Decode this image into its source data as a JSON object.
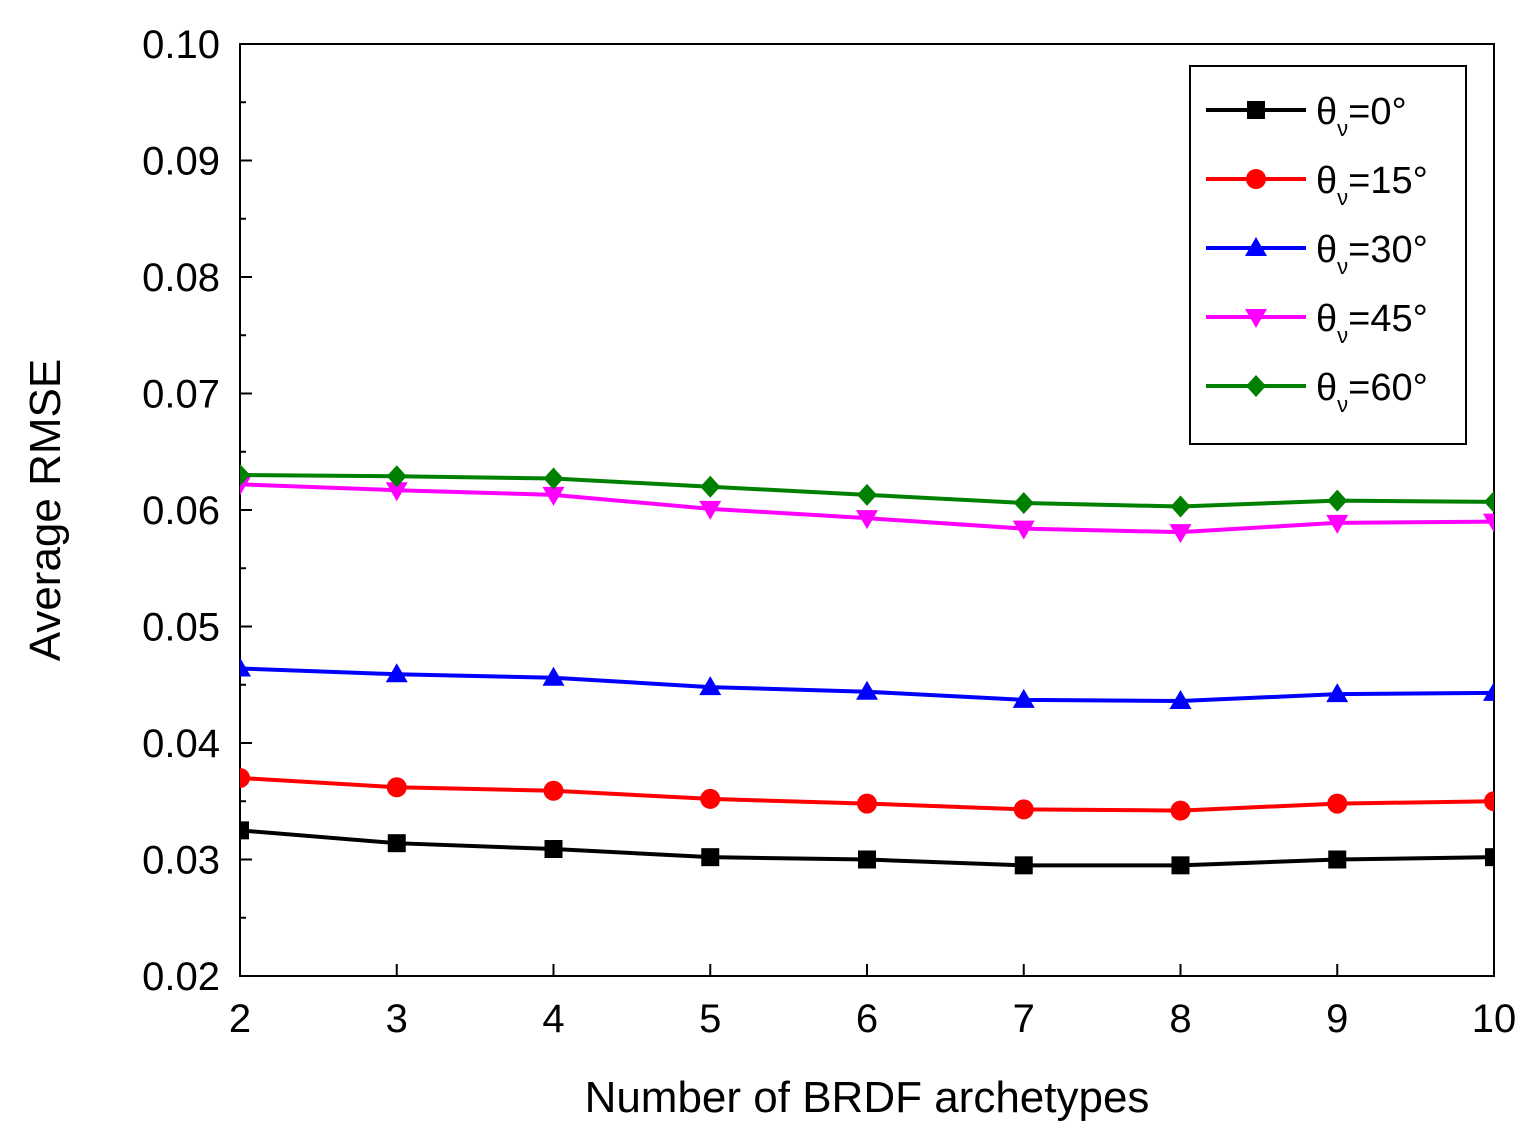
{
  "chart_data": {
    "type": "line",
    "title": "",
    "xlabel": "Number of BRDF archetypes",
    "ylabel": "Average RMSE",
    "xlim": [
      2,
      10
    ],
    "ylim": [
      0.02,
      0.1
    ],
    "xticks": [
      "2",
      "3",
      "4",
      "5",
      "6",
      "7",
      "8",
      "9",
      "10"
    ],
    "yticks": [
      "0.02",
      "0.03",
      "0.04",
      "0.05",
      "0.06",
      "0.07",
      "0.08",
      "0.09",
      "0.10"
    ],
    "x": [
      2,
      3,
      4,
      5,
      6,
      7,
      8,
      9,
      10
    ],
    "legend_position": "top-right",
    "grid": false,
    "series": [
      {
        "name": "θν=0°",
        "symbol": "θ",
        "sub": "ν",
        "suffix": "=0°",
        "color": "#000000",
        "marker": "square",
        "values": [
          0.0325,
          0.0314,
          0.0309,
          0.0302,
          0.03,
          0.0295,
          0.0295,
          0.03,
          0.0302
        ]
      },
      {
        "name": "θν=15°",
        "symbol": "θ",
        "sub": "ν",
        "suffix": "=15°",
        "color": "#ff0000",
        "marker": "circle",
        "values": [
          0.037,
          0.0362,
          0.0359,
          0.0352,
          0.0348,
          0.0343,
          0.0342,
          0.0348,
          0.035
        ]
      },
      {
        "name": "θν=30°",
        "symbol": "θ",
        "sub": "ν",
        "suffix": "=30°",
        "color": "#0000ff",
        "marker": "triangle-up",
        "values": [
          0.0464,
          0.0459,
          0.0456,
          0.0448,
          0.0444,
          0.0437,
          0.0436,
          0.0442,
          0.0443
        ]
      },
      {
        "name": "θν=45°",
        "symbol": "θ",
        "sub": "ν",
        "suffix": "=45°",
        "color": "#ff00ff",
        "marker": "triangle-down",
        "values": [
          0.0622,
          0.0617,
          0.0613,
          0.0601,
          0.0593,
          0.0584,
          0.0581,
          0.0589,
          0.059
        ]
      },
      {
        "name": "θν=60°",
        "symbol": "θ",
        "sub": "ν",
        "suffix": "=60°",
        "color": "#008000",
        "marker": "diamond",
        "values": [
          0.063,
          0.0629,
          0.0627,
          0.062,
          0.0613,
          0.0606,
          0.0603,
          0.0608,
          0.0607
        ]
      }
    ]
  }
}
